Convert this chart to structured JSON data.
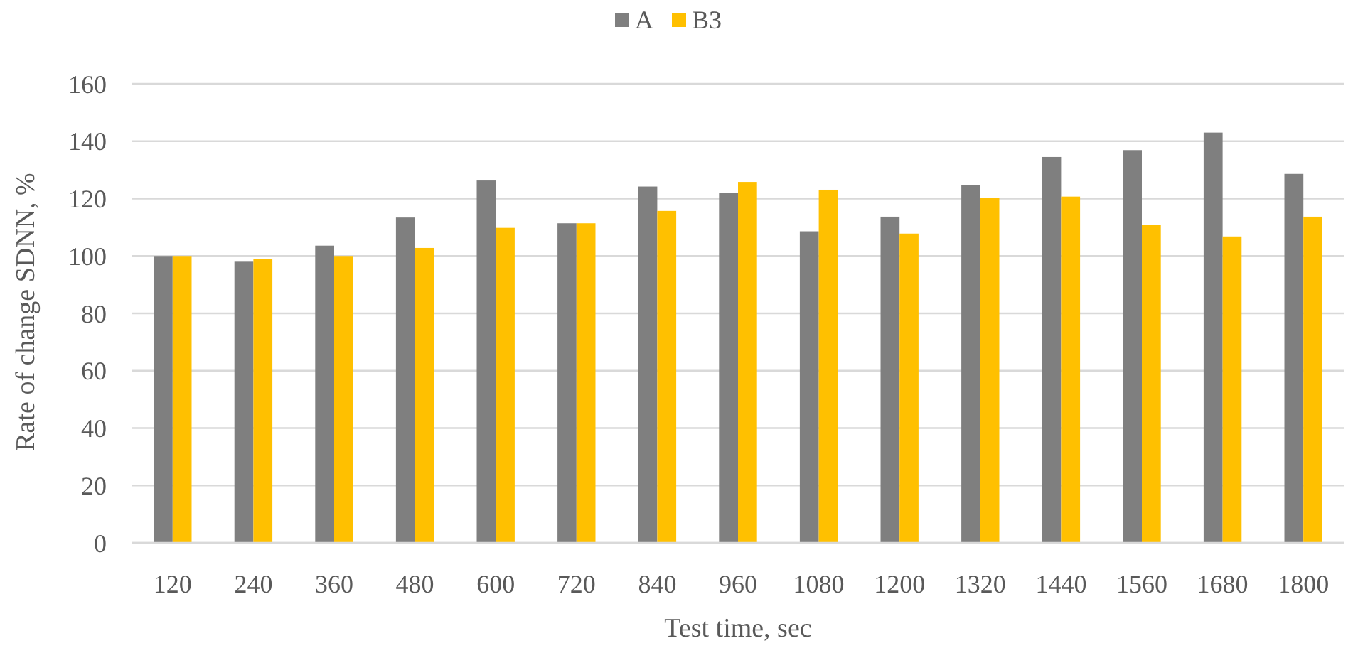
{
  "chart_data": {
    "type": "bar",
    "xlabel": "Test time, sec",
    "ylabel": "Rate of change SDNN, %",
    "categories": [
      "120",
      "240",
      "360",
      "480",
      "600",
      "720",
      "840",
      "960",
      "1080",
      "1200",
      "1320",
      "1440",
      "1560",
      "1680",
      "1800"
    ],
    "series": [
      {
        "name": "A",
        "color": "#7f7f7f",
        "values": [
          100,
          98,
          103.6,
          113.4,
          126.3,
          111.4,
          124.2,
          122.1,
          108.6,
          113.7,
          124.8,
          134.5,
          136.9,
          143,
          128.6
        ]
      },
      {
        "name": "B3",
        "color": "#ffc000",
        "values": [
          100,
          99,
          100,
          102.8,
          109.8,
          111.4,
          115.7,
          125.8,
          123.1,
          107.8,
          120.2,
          120.7,
          110.9,
          106.8,
          113.7
        ]
      }
    ],
    "ylim": [
      0,
      160
    ],
    "yticks": [
      0,
      20,
      40,
      60,
      80,
      100,
      120,
      140,
      160
    ],
    "grid": "y",
    "legend": "top"
  }
}
